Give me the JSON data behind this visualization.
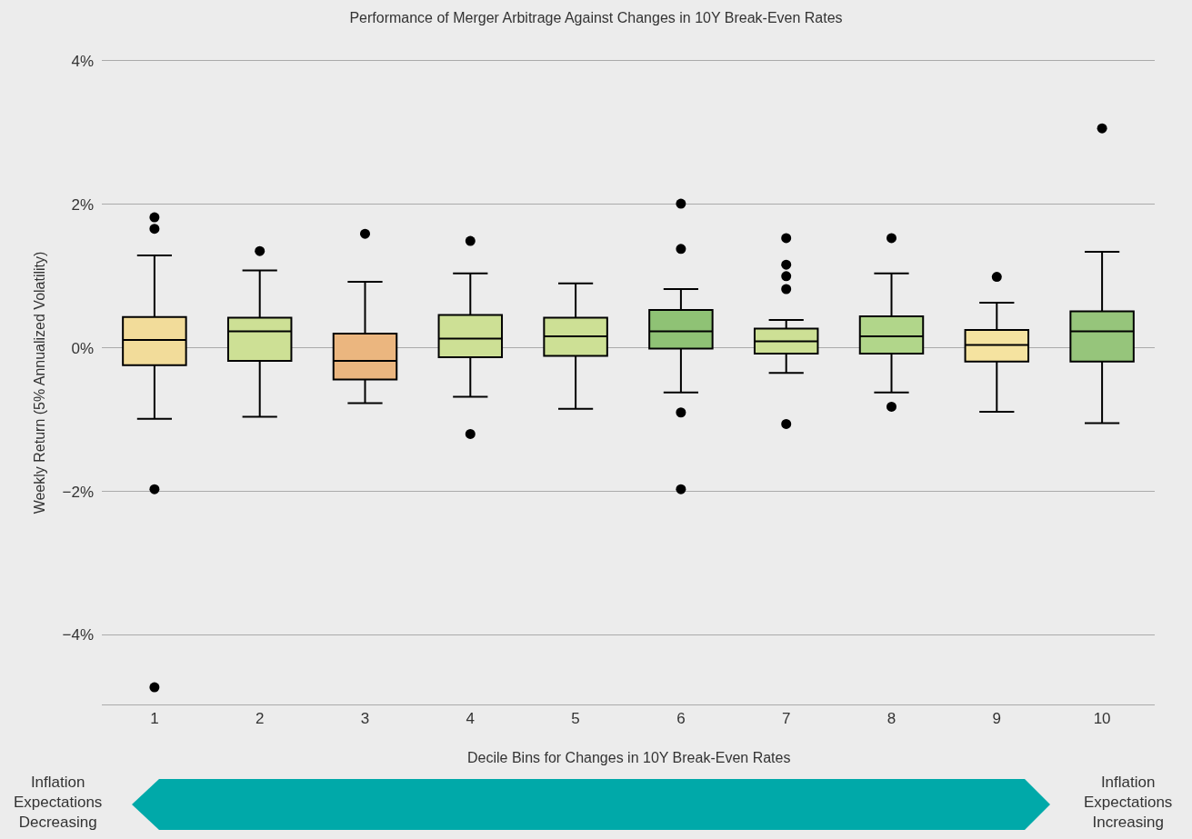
{
  "chart_data": {
    "type": "box",
    "title": "Performance of Merger Arbitrage Against Changes in 10Y Break-Even Rates",
    "xlabel": "Decile Bins for Changes in 10Y Break-Even Rates",
    "ylabel": "Weekly Return (5% Annualized Volatility)",
    "categories": [
      "1",
      "2",
      "3",
      "4",
      "5",
      "6",
      "7",
      "8",
      "9",
      "10"
    ],
    "colors": [
      "#f2dc9a",
      "#cde095",
      "#ebb67f",
      "#cde095",
      "#cde095",
      "#8fc275",
      "#cde095",
      "#b1d68a",
      "#f5e3a0",
      "#96c57b"
    ],
    "boxes": [
      {
        "low": -0.99,
        "q1": -0.24,
        "median": 0.11,
        "q3": 0.43,
        "high": 1.29,
        "outliers": [
          1.82,
          1.66,
          -1.97,
          -4.73
        ]
      },
      {
        "low": -0.96,
        "q1": -0.18,
        "median": 0.23,
        "q3": 0.42,
        "high": 1.08,
        "outliers": [
          1.35
        ]
      },
      {
        "low": -0.77,
        "q1": -0.44,
        "median": -0.18,
        "q3": 0.2,
        "high": 0.92,
        "outliers": [
          1.59
        ]
      },
      {
        "low": -0.68,
        "q1": -0.13,
        "median": 0.13,
        "q3": 0.46,
        "high": 1.04,
        "outliers": [
          1.49,
          -1.2
        ]
      },
      {
        "low": -0.85,
        "q1": -0.11,
        "median": 0.16,
        "q3": 0.42,
        "high": 0.9
      },
      {
        "low": -0.62,
        "q1": -0.01,
        "median": 0.23,
        "q3": 0.53,
        "high": 0.82,
        "outliers": [
          2.01,
          1.38,
          -0.9,
          -1.97
        ]
      },
      {
        "low": -0.35,
        "q1": -0.08,
        "median": 0.09,
        "q3": 0.27,
        "high": 0.39,
        "outliers": [
          1.53,
          1.16,
          1.0,
          0.82,
          -1.06
        ]
      },
      {
        "low": -0.62,
        "q1": -0.08,
        "median": 0.16,
        "q3": 0.44,
        "high": 1.04,
        "outliers": [
          1.53,
          -0.82
        ]
      },
      {
        "low": -0.89,
        "q1": -0.19,
        "median": 0.04,
        "q3": 0.25,
        "high": 0.63,
        "outliers": [
          0.99
        ]
      },
      {
        "low": -1.05,
        "q1": -0.19,
        "median": 0.23,
        "q3": 0.51,
        "high": 1.34,
        "outliers": [
          3.06
        ]
      }
    ],
    "ylim": [
      -4.97,
      4
    ],
    "yticks": [
      {
        "value": -4,
        "label": "−4%"
      },
      {
        "value": -2,
        "label": "−2%"
      },
      {
        "value": 0,
        "label": "0%"
      },
      {
        "value": 2,
        "label": "2%"
      },
      {
        "value": 4,
        "label": "4%"
      }
    ],
    "grid": "y",
    "marker": "circle",
    "annotations": [
      "Inflation\nExpectations\nDecreasing",
      "Inflation\nExpectations\nIncreasing"
    ]
  }
}
